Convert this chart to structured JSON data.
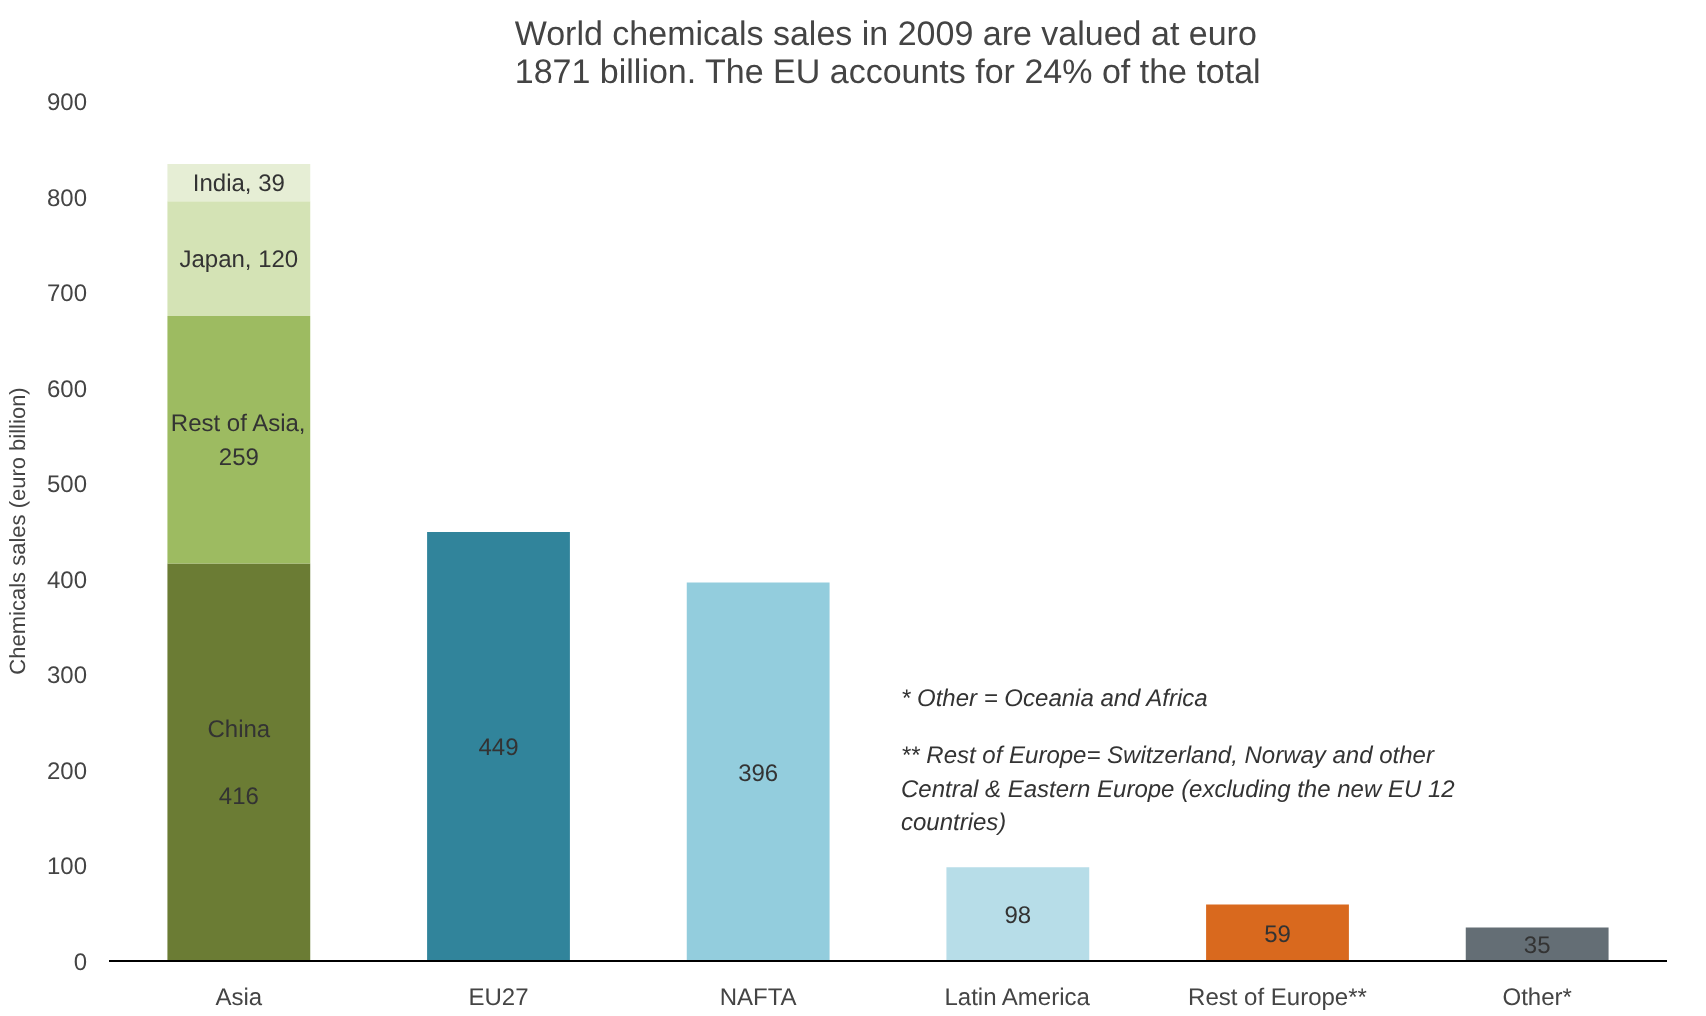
{
  "chart_data": {
    "type": "bar",
    "stacked": true,
    "title": "World chemicals sales in 2009 are valued at euro\n1871 billion. The EU accounts for 24% of the total",
    "ylabel": "Chemicals sales (euro billion)",
    "categories": [
      "Asia",
      "EU27",
      "NAFTA",
      "Latin America",
      "Rest of Europe**",
      "Other*"
    ],
    "series": [
      {
        "colors": [
          "#6b7c34",
          "#31849b",
          "#93cddd",
          "#b7dde8",
          "#d9691e",
          "#646e75"
        ],
        "values": [
          416,
          449,
          396,
          98,
          59,
          35
        ],
        "value_labels": [
          "China\n\n416",
          "449",
          "396",
          "98",
          "59",
          "35"
        ]
      },
      {
        "color": "#9dbb61",
        "values": [
          259,
          null,
          null,
          null,
          null,
          null
        ],
        "value_labels": [
          "Rest of Asia,\n259",
          null,
          null,
          null,
          null,
          null
        ]
      },
      {
        "color": "#d4e3b5",
        "values": [
          120,
          null,
          null,
          null,
          null,
          null
        ],
        "value_labels": [
          "Japan, 120",
          null,
          null,
          null,
          null,
          null
        ]
      },
      {
        "color": "#e6eed5",
        "values": [
          39,
          null,
          null,
          null,
          null,
          null
        ],
        "value_labels": [
          "India, 39",
          null,
          null,
          null,
          null,
          null
        ]
      }
    ],
    "ylim": [
      0,
      900
    ],
    "yticks": [
      0,
      100,
      200,
      300,
      400,
      500,
      600,
      700,
      800,
      900
    ],
    "grid": false,
    "annotations": [
      "* Other = Oceania and Africa",
      "** Rest of Europe= Switzerland, Norway and other\nCentral & Eastern Europe (excluding the new EU 12\ncountries)"
    ]
  }
}
